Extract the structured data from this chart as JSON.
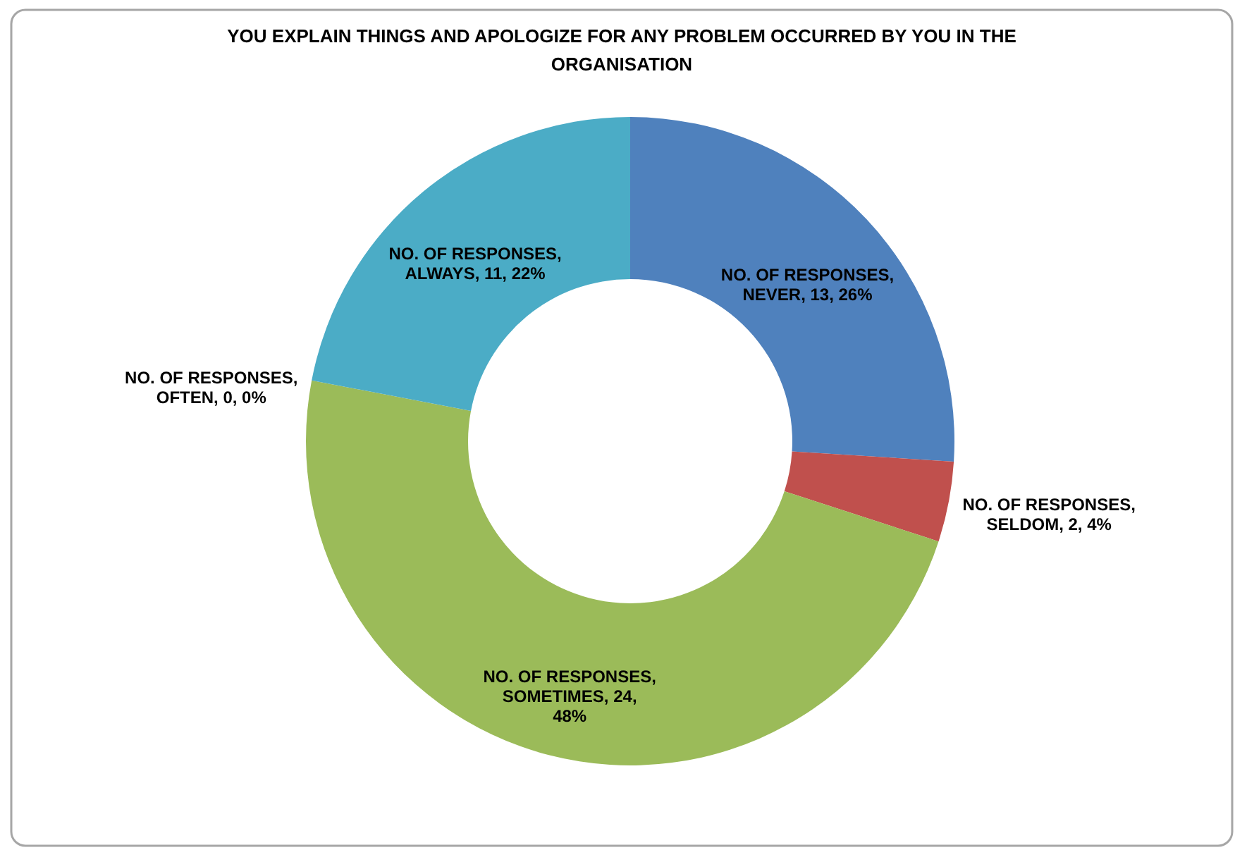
{
  "chart_data": {
    "type": "donut",
    "title": "YOU EXPLAIN THINGS AND APOLOGIZE FOR ANY PROBLEM OCCURRED BY YOU IN THE ORGANISATION",
    "categories": [
      null,
      null,
      null,
      null,
      null
    ],
    "values": [
      13,
      2,
      24,
      0,
      11
    ],
    "colors": [
      "#4f81bd",
      "#c0504d",
      "#9bbb59",
      "#8064a2",
      "#4bacc6"
    ],
    "value_labels": [
      "NO. OF RESPONSES, NEVER, 13, 26%",
      "NO. OF RESPONSES, SELDOM, 2, 4%",
      "NO. OF RESPONSES, SOMETIMES, 24, 48%",
      "NO. OF RESPONSES, OFTEN, 0, 0%",
      "NO. OF RESPONSES, ALWAYS, 11, 22%"
    ]
  }
}
